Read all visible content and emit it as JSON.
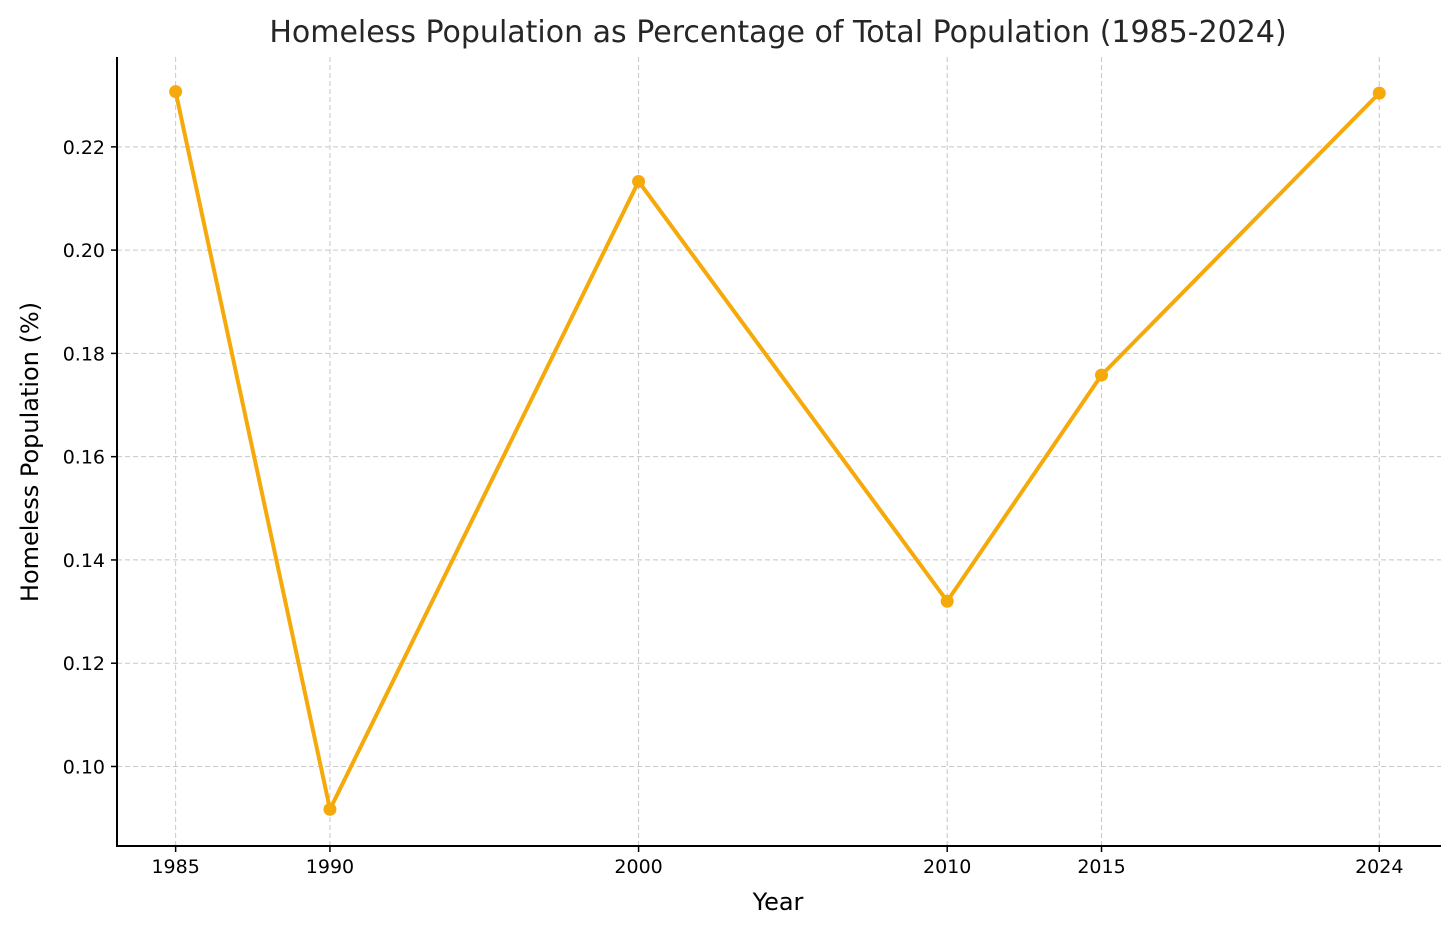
{
  "chart_data": {
    "type": "line",
    "title": "Homeless Population as Percentage of Total Population (1985-2024)",
    "xlabel": "Year",
    "ylabel": "Homeless Population (%)",
    "x": [
      1985,
      1990,
      2000,
      2010,
      2015,
      2024
    ],
    "x_tick_labels": [
      "1985",
      "1990",
      "2000",
      "2010",
      "2015",
      "2024"
    ],
    "xlim": [
      1983.1,
      2026.0
    ],
    "ylim": [
      0.0846,
      0.2374
    ],
    "y_ticks": [
      0.1,
      0.12,
      0.14,
      0.16,
      0.18,
      0.2,
      0.22
    ],
    "y_tick_labels": [
      "0.10",
      "0.12",
      "0.14",
      "0.16",
      "0.18",
      "0.20",
      "0.22"
    ],
    "series": [
      {
        "values": [
          0.2307,
          0.0917,
          0.2133,
          0.132,
          0.1758,
          0.2304
        ],
        "color": "#f5a90a"
      }
    ],
    "grid": true,
    "marker": "circle",
    "legend": "none"
  }
}
